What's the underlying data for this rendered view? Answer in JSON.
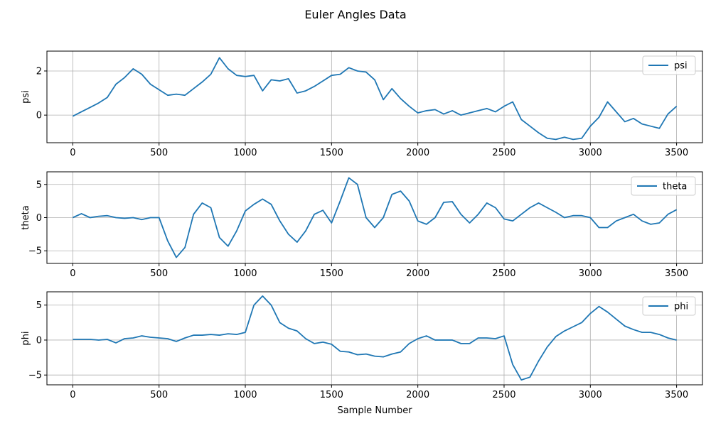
{
  "figure": {
    "title": "Euler Angles Data",
    "line_color": "#1f77b4",
    "grid_color": "#b0b0b0"
  },
  "chart_data": [
    {
      "type": "line",
      "title": "",
      "xlabel": "",
      "ylabel": "psi",
      "xlim": [
        -150,
        3650
      ],
      "ylim": [
        -1.25,
        2.9
      ],
      "xticks": [
        0,
        500,
        1000,
        1500,
        2000,
        2500,
        3000,
        3500
      ],
      "xtick_labels": [
        "0",
        "500",
        "1000",
        "1500",
        "2000",
        "2500",
        "3000",
        "3500"
      ],
      "yticks": [
        0,
        2
      ],
      "ytick_labels": [
        "0",
        "2"
      ],
      "grid": true,
      "legend_position": "upper right",
      "series": [
        {
          "name": "psi",
          "color": "#1f77b4",
          "x": [
            0,
            50,
            100,
            150,
            200,
            250,
            300,
            350,
            400,
            450,
            500,
            550,
            600,
            650,
            700,
            750,
            800,
            850,
            900,
            950,
            1000,
            1050,
            1100,
            1150,
            1200,
            1250,
            1300,
            1350,
            1400,
            1450,
            1500,
            1550,
            1600,
            1650,
            1700,
            1750,
            1800,
            1850,
            1900,
            1950,
            2000,
            2050,
            2100,
            2150,
            2200,
            2250,
            2300,
            2350,
            2400,
            2450,
            2500,
            2550,
            2600,
            2650,
            2700,
            2750,
            2800,
            2850,
            2900,
            2950,
            3000,
            3050,
            3100,
            3150,
            3200,
            3250,
            3300,
            3350,
            3400,
            3450,
            3500
          ],
          "y": [
            -0.05,
            0.15,
            0.35,
            0.55,
            0.8,
            1.4,
            1.7,
            2.1,
            1.85,
            1.4,
            1.15,
            0.9,
            0.95,
            0.9,
            1.2,
            1.5,
            1.85,
            2.6,
            2.1,
            1.8,
            1.75,
            1.8,
            1.1,
            1.6,
            1.55,
            1.65,
            1.0,
            1.1,
            1.3,
            1.55,
            1.8,
            1.85,
            2.15,
            2.0,
            1.95,
            1.6,
            0.7,
            1.2,
            0.75,
            0.4,
            0.1,
            0.2,
            0.25,
            0.05,
            0.2,
            0.0,
            0.1,
            0.2,
            0.3,
            0.15,
            0.4,
            0.6,
            -0.2,
            -0.5,
            -0.8,
            -1.05,
            -1.1,
            -1.0,
            -1.1,
            -1.05,
            -0.5,
            -0.1,
            0.6,
            0.15,
            -0.3,
            -0.15,
            -0.4,
            -0.5,
            -0.6,
            0.05,
            0.4
          ]
        }
      ]
    },
    {
      "type": "line",
      "title": "",
      "xlabel": "",
      "ylabel": "theta",
      "xlim": [
        -150,
        3650
      ],
      "ylim": [
        -6.9,
        6.9
      ],
      "xticks": [
        0,
        500,
        1000,
        1500,
        2000,
        2500,
        3000,
        3500
      ],
      "xtick_labels": [
        "0",
        "500",
        "1000",
        "1500",
        "2000",
        "2500",
        "3000",
        "3500"
      ],
      "yticks": [
        -5,
        0,
        5
      ],
      "ytick_labels": [
        "−5",
        "0",
        "5"
      ],
      "grid": true,
      "legend_position": "upper right",
      "series": [
        {
          "name": "theta",
          "color": "#1f77b4",
          "x": [
            0,
            50,
            100,
            150,
            200,
            250,
            300,
            350,
            400,
            450,
            500,
            550,
            600,
            650,
            700,
            750,
            800,
            850,
            900,
            950,
            1000,
            1050,
            1100,
            1150,
            1200,
            1250,
            1300,
            1350,
            1400,
            1450,
            1500,
            1550,
            1600,
            1650,
            1700,
            1750,
            1800,
            1850,
            1900,
            1950,
            2000,
            2050,
            2100,
            2150,
            2200,
            2250,
            2300,
            2350,
            2400,
            2450,
            2500,
            2550,
            2600,
            2650,
            2700,
            2750,
            2800,
            2850,
            2900,
            2950,
            3000,
            3050,
            3100,
            3150,
            3200,
            3250,
            3300,
            3350,
            3400,
            3450,
            3500
          ],
          "y": [
            0.0,
            0.6,
            0.0,
            0.2,
            0.3,
            0.0,
            -0.1,
            0.0,
            -0.3,
            0.0,
            0.0,
            -3.5,
            -6.0,
            -4.5,
            0.5,
            2.2,
            1.5,
            -3.0,
            -4.3,
            -2.0,
            1.0,
            2.0,
            2.8,
            2.0,
            -0.5,
            -2.5,
            -3.7,
            -2.0,
            0.5,
            1.1,
            -0.8,
            2.5,
            6.0,
            5.0,
            0.0,
            -1.5,
            0.0,
            3.5,
            4.0,
            2.5,
            -0.5,
            -1.0,
            0.0,
            2.3,
            2.4,
            0.5,
            -0.8,
            0.5,
            2.2,
            1.5,
            -0.2,
            -0.5,
            0.5,
            1.5,
            2.2,
            1.5,
            0.8,
            0.0,
            0.3,
            0.3,
            0.0,
            -1.5,
            -1.5,
            -0.5,
            0.0,
            0.5,
            -0.5,
            -1.0,
            -0.8,
            0.5,
            1.2
          ]
        }
      ]
    },
    {
      "type": "line",
      "title": "",
      "xlabel": "Sample Number",
      "ylabel": "phi",
      "xlim": [
        -150,
        3650
      ],
      "ylim": [
        -6.4,
        6.9
      ],
      "xticks": [
        0,
        500,
        1000,
        1500,
        2000,
        2500,
        3000,
        3500
      ],
      "xtick_labels": [
        "0",
        "500",
        "1000",
        "1500",
        "2000",
        "2500",
        "3000",
        "3500"
      ],
      "yticks": [
        -5,
        0,
        5
      ],
      "ytick_labels": [
        "−5",
        "0",
        "5"
      ],
      "grid": true,
      "legend_position": "upper right",
      "series": [
        {
          "name": "phi",
          "color": "#1f77b4",
          "x": [
            0,
            50,
            100,
            150,
            200,
            250,
            300,
            350,
            400,
            450,
            500,
            550,
            600,
            650,
            700,
            750,
            800,
            850,
            900,
            950,
            1000,
            1050,
            1100,
            1150,
            1200,
            1250,
            1300,
            1350,
            1400,
            1450,
            1500,
            1550,
            1600,
            1650,
            1700,
            1750,
            1800,
            1850,
            1900,
            1950,
            2000,
            2050,
            2100,
            2150,
            2200,
            2250,
            2300,
            2350,
            2400,
            2450,
            2500,
            2550,
            2600,
            2650,
            2700,
            2750,
            2800,
            2850,
            2900,
            2950,
            3000,
            3050,
            3100,
            3150,
            3200,
            3250,
            3300,
            3350,
            3400,
            3450,
            3500
          ],
          "y": [
            0.1,
            0.1,
            0.1,
            0.0,
            0.1,
            -0.4,
            0.2,
            0.3,
            0.6,
            0.4,
            0.3,
            0.2,
            -0.2,
            0.3,
            0.7,
            0.7,
            0.8,
            0.7,
            0.9,
            0.8,
            1.1,
            5.0,
            6.3,
            5.0,
            2.5,
            1.7,
            1.3,
            0.2,
            -0.5,
            -0.3,
            -0.6,
            -1.6,
            -1.7,
            -2.1,
            -2.0,
            -2.3,
            -2.4,
            -2.0,
            -1.7,
            -0.5,
            0.2,
            0.6,
            0.0,
            0.0,
            0.0,
            -0.5,
            -0.5,
            0.3,
            0.3,
            0.2,
            0.6,
            -3.5,
            -5.7,
            -5.3,
            -3.0,
            -1.0,
            0.5,
            1.3,
            1.9,
            2.5,
            3.8,
            4.8,
            4.0,
            3.0,
            2.0,
            1.5,
            1.1,
            1.1,
            0.8,
            0.3,
            0.0
          ]
        }
      ]
    }
  ]
}
